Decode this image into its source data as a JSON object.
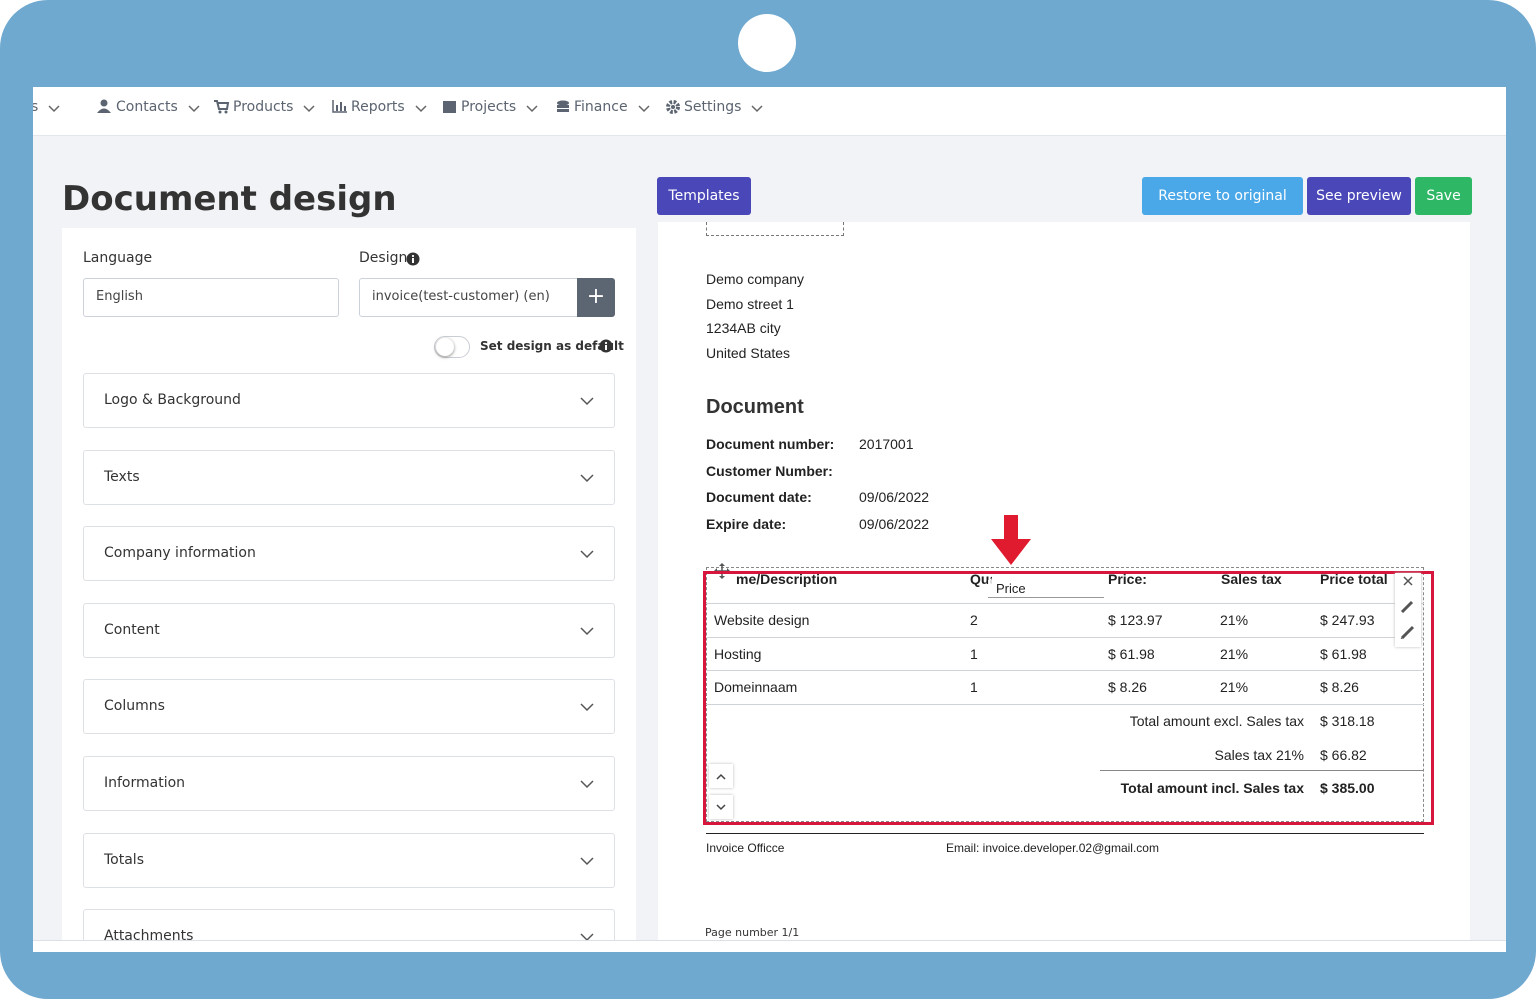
{
  "nav": {
    "items": [
      "s",
      "Contacts",
      "Products",
      "Reports",
      "Projects",
      "Finance",
      "Settings"
    ]
  },
  "page_title": "Document design",
  "form": {
    "language_label": "Language",
    "language_value": "English",
    "design_label": "Design",
    "design_value": "invoice(test-customer) (en)",
    "add_button": "+",
    "default_toggle": "Set design as default"
  },
  "sections": [
    "Logo & Background",
    "Texts",
    "Company information",
    "Content",
    "Columns",
    "Information",
    "Totals",
    "Attachments"
  ],
  "toolbar": {
    "templates": "Templates",
    "restore": "Restore to original",
    "preview": "See preview",
    "save": "Save"
  },
  "preview": {
    "company": [
      "Demo company",
      "Demo street 1",
      "1234AB city",
      "United States"
    ],
    "heading": "Document",
    "meta": [
      {
        "label": "Document number:",
        "value": "2017001"
      },
      {
        "label": "Customer Number:"
      },
      {
        "label": "Document date:",
        "value": "09/06/2022"
      },
      {
        "label": "Expire date:",
        "value": "09/06/2022"
      }
    ],
    "table": {
      "headers": [
        "me/Description",
        "Quantity",
        "Price:",
        "Sales tax",
        "Price total"
      ],
      "drag_ghost": "Price",
      "rows": [
        [
          "Website design",
          "2",
          "$ 123.97",
          "21%",
          "$ 247.93"
        ],
        [
          "Hosting",
          "1",
          "$ 61.98",
          "21%",
          "$ 61.98"
        ],
        [
          "Domeinnaam",
          "1",
          "$ 8.26",
          "21%",
          "$ 8.26"
        ]
      ],
      "totals": [
        {
          "label": "Total amount excl. Sales tax",
          "value": "$ 318.18"
        },
        {
          "label": "Sales tax 21%",
          "value": "$ 66.82"
        },
        {
          "label": "Total amount incl. Sales tax",
          "value": "$ 385.00"
        }
      ]
    },
    "footer": {
      "name": "Invoice Officce",
      "email": "Email: invoice.developer.02@gmail.com"
    },
    "page_number": "Page number 1/1"
  }
}
